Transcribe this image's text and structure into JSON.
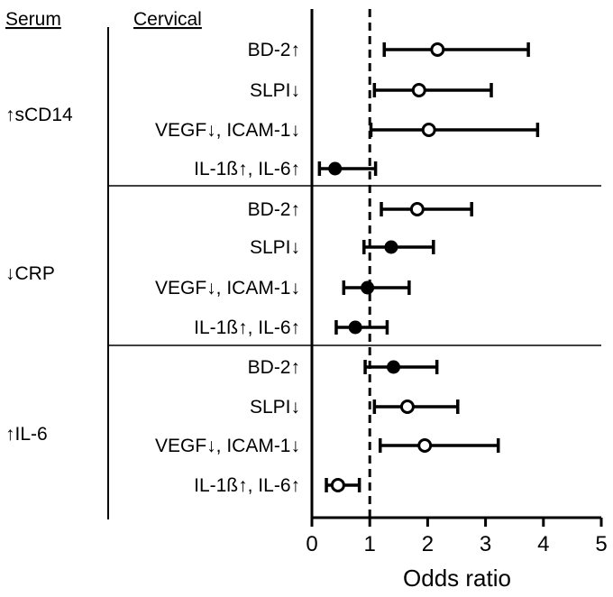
{
  "chart_data": {
    "type": "forest",
    "headers": {
      "serum": "Serum",
      "cervical": "Cervical"
    },
    "xlabel": "Odds ratio",
    "xlim": [
      0,
      5
    ],
    "xticks": [
      "0",
      "1",
      "2",
      "3",
      "4",
      "5"
    ],
    "reference_line": 1,
    "groups": [
      {
        "label": "↑sCD14",
        "rows": [
          {
            "label": "BD-2↑",
            "or": 2.17,
            "lo": 1.25,
            "hi": 3.74,
            "marker": "open"
          },
          {
            "label": "SLPI↓",
            "or": 1.85,
            "lo": 1.08,
            "hi": 3.1,
            "marker": "open"
          },
          {
            "label": "VEGF↓, ICAM-1↓",
            "or": 2.02,
            "lo": 1.02,
            "hi": 3.9,
            "marker": "open"
          },
          {
            "label": "IL-1ß↑, IL-6↑",
            "or": 0.4,
            "lo": 0.13,
            "hi": 1.1,
            "marker": "filled"
          }
        ]
      },
      {
        "label": "↓CRP",
        "rows": [
          {
            "label": "BD-2↑",
            "or": 1.82,
            "lo": 1.2,
            "hi": 2.76,
            "marker": "open"
          },
          {
            "label": "SLPI↓",
            "or": 1.37,
            "lo": 0.9,
            "hi": 2.1,
            "marker": "filled"
          },
          {
            "label": "VEGF↓, ICAM-1↓",
            "or": 0.96,
            "lo": 0.55,
            "hi": 1.68,
            "marker": "filled"
          },
          {
            "label": "IL-1ß↑, IL-6↑",
            "or": 0.75,
            "lo": 0.42,
            "hi": 1.3,
            "marker": "filled"
          }
        ]
      },
      {
        "label": "↑IL-6",
        "rows": [
          {
            "label": "BD-2↑",
            "or": 1.41,
            "lo": 0.92,
            "hi": 2.16,
            "marker": "filled"
          },
          {
            "label": "SLPI↓",
            "or": 1.65,
            "lo": 1.08,
            "hi": 2.52,
            "marker": "open"
          },
          {
            "label": "VEGF↓, ICAM-1↓",
            "or": 1.95,
            "lo": 1.18,
            "hi": 3.22,
            "marker": "open"
          },
          {
            "label": "IL-1ß↑, IL-6↑",
            "or": 0.45,
            "lo": 0.25,
            "hi": 0.82,
            "marker": "open"
          }
        ]
      }
    ]
  }
}
